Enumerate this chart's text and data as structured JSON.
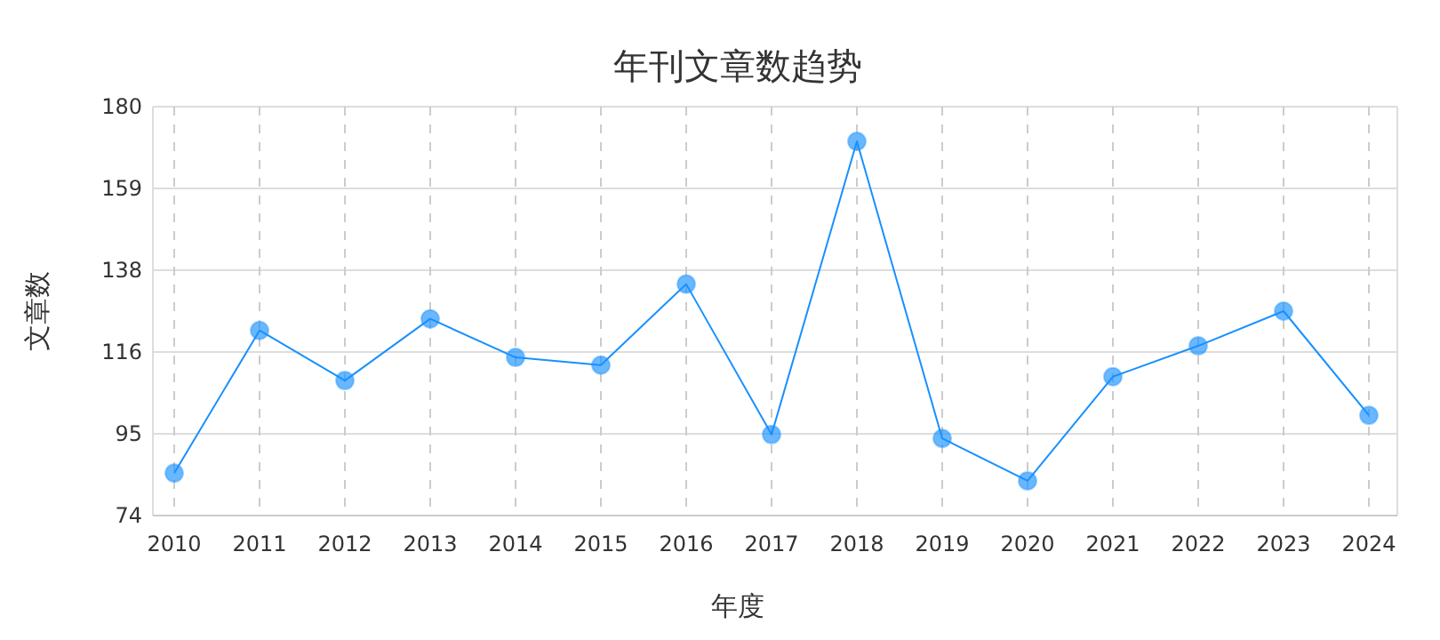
{
  "chart_data": {
    "type": "line",
    "title": "年刊文章数趋势",
    "xlabel": "年度",
    "ylabel": "文章数",
    "categories": [
      "2010",
      "2011",
      "2012",
      "2013",
      "2014",
      "2015",
      "2016",
      "2017",
      "2018",
      "2019",
      "2020",
      "2021",
      "2022",
      "2023",
      "2024"
    ],
    "series": [
      {
        "color": "#1890ff",
        "values": [
          85,
          122,
          109,
          125,
          115,
          113,
          134,
          95,
          171,
          94,
          83,
          110,
          118,
          127,
          100
        ]
      }
    ],
    "ylim": [
      74,
      180
    ],
    "yticks": [
      74,
      {
        "value": 95.2,
        "label": "95"
      },
      {
        "value": 116.4,
        "label": "116"
      },
      {
        "value": 137.6,
        "label": "138"
      },
      {
        "value": 158.8,
        "label": "159"
      },
      180
    ],
    "grid": true,
    "marker": "circle",
    "line_style": "solid"
  }
}
